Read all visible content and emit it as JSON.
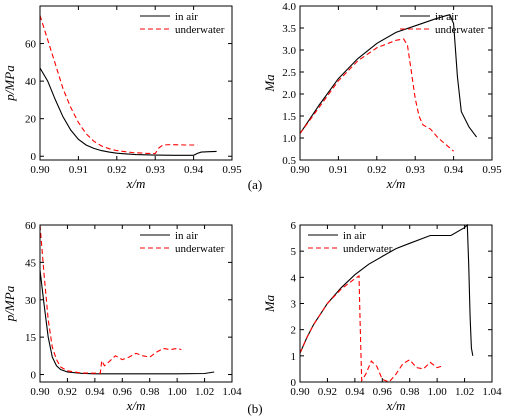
{
  "panel_labels": [
    "(a)",
    "(b)"
  ],
  "legend": {
    "in_air": "in air",
    "underwater": "underwater"
  },
  "chart_data": [
    {
      "type": "line",
      "panel": "(a)",
      "side": "left",
      "xlabel": "x/m",
      "ylabel": "p/MPa",
      "xlim": [
        0.9,
        0.95
      ],
      "ylim": [
        -2,
        80
      ],
      "xticks": [
        0.9,
        0.91,
        0.92,
        0.93,
        0.94,
        0.95
      ],
      "xtick_labels": [
        "0.90",
        "0.91",
        "0.92",
        "0.93",
        "0.94",
        "0.95"
      ],
      "yticks": [
        0,
        20,
        40,
        60
      ],
      "ytick_labels": [
        "0",
        "20",
        "40",
        "60"
      ],
      "legend_position": "top-right",
      "grid": false,
      "series": [
        {
          "name": "in air",
          "style": "solid",
          "color": "#000000",
          "x": [
            0.9,
            0.902,
            0.904,
            0.906,
            0.908,
            0.91,
            0.912,
            0.914,
            0.916,
            0.918,
            0.92,
            0.925,
            0.93,
            0.935,
            0.94,
            0.941,
            0.942,
            0.944,
            0.946
          ],
          "y": [
            47,
            40,
            30,
            21,
            14,
            9,
            6,
            4.2,
            3,
            2.2,
            1.6,
            0.9,
            0.6,
            0.5,
            0.5,
            1.5,
            2.2,
            2.4,
            2.6
          ]
        },
        {
          "name": "underwater",
          "style": "dashed",
          "color": "#ff0000",
          "x": [
            0.9,
            0.902,
            0.904,
            0.906,
            0.908,
            0.91,
            0.912,
            0.914,
            0.916,
            0.918,
            0.92,
            0.924,
            0.928,
            0.93,
            0.931,
            0.932,
            0.934,
            0.936,
            0.938,
            0.94,
            0.941
          ],
          "y": [
            75,
            62,
            49,
            36,
            26,
            18,
            12,
            8,
            5.5,
            4,
            3,
            2,
            1.5,
            1.4,
            4.5,
            6,
            6.2,
            6.1,
            6,
            6,
            6
          ]
        }
      ]
    },
    {
      "type": "line",
      "panel": "(a)",
      "side": "right",
      "xlabel": "x/m",
      "ylabel": "Ma",
      "xlim": [
        0.9,
        0.95
      ],
      "ylim": [
        0.5,
        4.0
      ],
      "xticks": [
        0.9,
        0.91,
        0.92,
        0.93,
        0.94,
        0.95
      ],
      "xtick_labels": [
        "0.90",
        "0.91",
        "0.92",
        "0.93",
        "0.94",
        "0.95"
      ],
      "yticks": [
        0.5,
        1.0,
        1.5,
        2.0,
        2.5,
        3.0,
        3.5,
        4.0
      ],
      "ytick_labels": [
        "0.5",
        "1.0",
        "1.5",
        "2.0",
        "2.5",
        "3.0",
        "3.5",
        "4.0"
      ],
      "legend_position": "top-right",
      "grid": false,
      "series": [
        {
          "name": "in air",
          "style": "solid",
          "color": "#000000",
          "x": [
            0.9,
            0.905,
            0.91,
            0.915,
            0.92,
            0.925,
            0.93,
            0.935,
            0.938,
            0.939,
            0.94,
            0.941,
            0.942,
            0.944,
            0.946
          ],
          "y": [
            1.1,
            1.75,
            2.35,
            2.8,
            3.15,
            3.4,
            3.55,
            3.7,
            3.78,
            3.8,
            3.6,
            2.4,
            1.6,
            1.25,
            1.02
          ]
        },
        {
          "name": "underwater",
          "style": "dashed",
          "color": "#ff0000",
          "x": [
            0.9,
            0.905,
            0.91,
            0.915,
            0.92,
            0.925,
            0.927,
            0.928,
            0.929,
            0.93,
            0.931,
            0.932,
            0.934,
            0.936,
            0.938,
            0.94
          ],
          "y": [
            1.1,
            1.7,
            2.3,
            2.75,
            3.05,
            3.22,
            3.25,
            3.1,
            2.5,
            1.9,
            1.5,
            1.3,
            1.2,
            1.0,
            0.85,
            0.7
          ]
        }
      ]
    },
    {
      "type": "line",
      "panel": "(b)",
      "side": "left",
      "xlabel": "x/m",
      "ylabel": "p/MPa",
      "xlim": [
        0.9,
        1.04
      ],
      "ylim": [
        -3,
        60
      ],
      "xticks": [
        0.9,
        0.92,
        0.94,
        0.96,
        0.98,
        1.0,
        1.02,
        1.04
      ],
      "xtick_labels": [
        "0.90",
        "0.92",
        "0.94",
        "0.96",
        "0.98",
        "1.00",
        "1.02",
        "1.04"
      ],
      "yticks": [
        0,
        15,
        30,
        45,
        60
      ],
      "ytick_labels": [
        "0",
        "15",
        "30",
        "45",
        "60"
      ],
      "legend_position": "top-right",
      "grid": false,
      "series": [
        {
          "name": "in air",
          "style": "solid",
          "color": "#000000",
          "x": [
            0.9,
            0.903,
            0.906,
            0.909,
            0.912,
            0.915,
            0.92,
            0.93,
            0.94,
            0.96,
            0.98,
            1.0,
            1.02,
            1.027
          ],
          "y": [
            42,
            28,
            15,
            7,
            3.5,
            2,
            1,
            0.5,
            0.3,
            0.3,
            0.3,
            0.3,
            0.4,
            1
          ]
        },
        {
          "name": "underwater",
          "style": "dashed",
          "color": "#ff0000",
          "x": [
            0.9,
            0.903,
            0.906,
            0.909,
            0.912,
            0.915,
            0.92,
            0.93,
            0.944,
            0.945,
            0.947,
            0.95,
            0.955,
            0.96,
            0.965,
            0.97,
            0.975,
            0.98,
            0.985,
            0.99,
            0.995,
            1.0,
            1.003
          ],
          "y": [
            60,
            40,
            22,
            11,
            6,
            3,
            1.5,
            0.6,
            0.5,
            5.5,
            3.5,
            5,
            7.5,
            6,
            7,
            8.5,
            7.5,
            7,
            9,
            10.5,
            10,
            10.5,
            10
          ]
        }
      ]
    },
    {
      "type": "line",
      "panel": "(b)",
      "side": "right",
      "xlabel": "x/m",
      "ylabel": "Ma",
      "xlim": [
        0.9,
        1.04
      ],
      "ylim": [
        0,
        6
      ],
      "xticks": [
        0.9,
        0.92,
        0.94,
        0.96,
        0.98,
        1.0,
        1.02,
        1.04
      ],
      "xtick_labels": [
        "0.90",
        "0.92",
        "0.94",
        "0.96",
        "0.98",
        "1.00",
        "1.02",
        "1.04"
      ],
      "yticks": [
        0,
        1,
        2,
        3,
        4,
        5,
        6
      ],
      "ytick_labels": [
        "0",
        "1",
        "2",
        "3",
        "4",
        "5",
        "6"
      ],
      "legend_position": "top-left",
      "grid": false,
      "series": [
        {
          "name": "in air",
          "style": "solid",
          "color": "#000000",
          "x": [
            0.9,
            0.905,
            0.91,
            0.92,
            0.93,
            0.94,
            0.95,
            0.96,
            0.97,
            0.98,
            0.99,
            0.995,
            1.0,
            1.01,
            1.02,
            1.022,
            1.023,
            1.024,
            1.025,
            1.026
          ],
          "y": [
            1.1,
            1.7,
            2.2,
            3.0,
            3.6,
            4.1,
            4.5,
            4.8,
            5.1,
            5.3,
            5.5,
            5.6,
            5.6,
            5.6,
            5.9,
            6.0,
            4.5,
            2.5,
            1.3,
            1.0
          ]
        },
        {
          "name": "underwater",
          "style": "dashed",
          "color": "#ff0000",
          "x": [
            0.9,
            0.905,
            0.91,
            0.92,
            0.93,
            0.94,
            0.943,
            0.944,
            0.945,
            0.948,
            0.952,
            0.956,
            0.96,
            0.965,
            0.97,
            0.975,
            0.98,
            0.985,
            0.99,
            0.995,
            1.0,
            1.003
          ],
          "y": [
            1.1,
            1.7,
            2.2,
            3.0,
            3.55,
            3.95,
            4.05,
            2.0,
            0.05,
            0.3,
            0.8,
            0.6,
            0.1,
            0.0,
            0.3,
            0.7,
            0.85,
            0.55,
            0.5,
            0.75,
            0.55,
            0.6
          ]
        }
      ]
    }
  ]
}
